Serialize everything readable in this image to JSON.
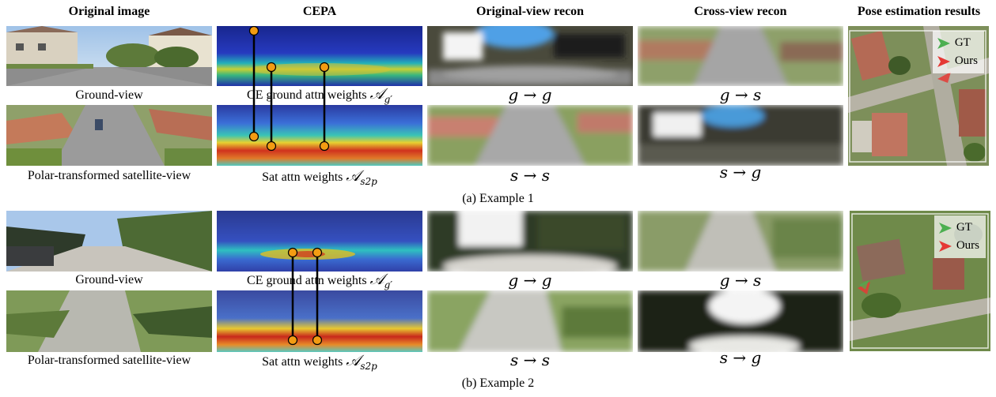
{
  "headers": {
    "original_image": "Original image",
    "cepa": "CEPA",
    "original_view_recon": "Original-view recon",
    "cross_view_recon": "Cross-view recon",
    "pose_results": "Pose estimation results"
  },
  "examples": [
    {
      "caption": "(a) Example 1",
      "ground_view_label": "Ground-view",
      "satellite_view_label": "Polar-transformed satellite-view",
      "ce_ground_label_text": "CE ground attn weights",
      "sat_attn_label_text": "Sat attn weights",
      "recon_labels": {
        "g_to_g": "g → g",
        "s_to_s": "s → s",
        "g_to_s": "g → s",
        "s_to_g": "s → g"
      },
      "legend": {
        "gt": "GT",
        "ours": "Ours"
      }
    },
    {
      "caption": "(b) Example 2",
      "ground_view_label": "Ground-view",
      "satellite_view_label": "Polar-transformed satellite-view",
      "ce_ground_label_text": "CE ground attn weights",
      "sat_attn_label_text": "Sat attn weights",
      "recon_labels": {
        "g_to_g": "g → g",
        "s_to_s": "s → s",
        "g_to_s": "g → s",
        "s_to_g": "s → g"
      },
      "legend": {
        "gt": "GT",
        "ours": "Ours"
      }
    }
  ],
  "math": {
    "ce_symbol": "𝒜",
    "ce_subscript": "g′",
    "sat_symbol": "𝒜",
    "sat_subscript": "s2p"
  },
  "colors": {
    "gt_arrow": "#4caf50",
    "ours_arrow": "#e53935",
    "attn_marker": "#f39c12"
  }
}
